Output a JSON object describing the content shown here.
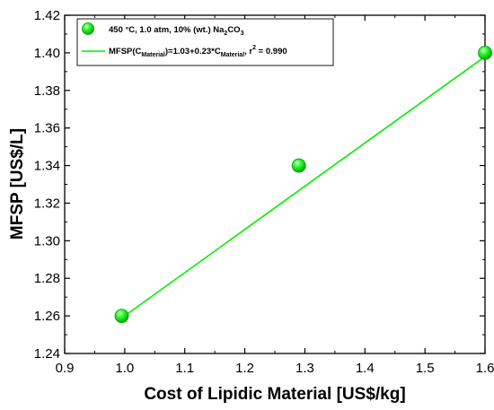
{
  "chart_data": {
    "type": "scatter",
    "xlabel": "Cost of Lipidic Material [US$/kg]",
    "ylabel": "MFSP [US$/L]",
    "xlim": [
      0.9,
      1.6
    ],
    "ylim": [
      1.24,
      1.42
    ],
    "x_ticks": [
      0.9,
      1.0,
      1.1,
      1.2,
      1.3,
      1.4,
      1.5,
      1.6
    ],
    "x_tick_labels": [
      "0.9",
      "1.0",
      "1.1",
      "1.2",
      "1.3",
      "1.4",
      "1.5",
      "1.6"
    ],
    "y_ticks": [
      1.24,
      1.26,
      1.28,
      1.3,
      1.32,
      1.34,
      1.36,
      1.38,
      1.4,
      1.42
    ],
    "y_tick_labels": [
      "1.24",
      "1.26",
      "1.28",
      "1.30",
      "1.32",
      "1.34",
      "1.36",
      "1.38",
      "1.40",
      "1.42"
    ],
    "grid": false,
    "legend_position": "top-left",
    "series": [
      {
        "name": "450 °C, 1.0 atm, 10% (wt.) Na2CO3",
        "kind": "points",
        "color": "#00e000",
        "x": [
          0.995,
          1.29,
          1.6
        ],
        "y": [
          1.26,
          1.34,
          1.4
        ]
      },
      {
        "name": "MFSP(CMaterial)=1.03+0.23*CMaterial, r2 = 0.990",
        "kind": "fit-line",
        "color": "#00ee00",
        "intercept": 1.03,
        "slope": 0.23,
        "r2": 0.99,
        "x": [
          0.995,
          1.6
        ]
      }
    ],
    "legend": {
      "entry1": {
        "prefix": "450 °C, 1.0 atm, 10% (wt.) Na",
        "sub1": "2",
        "mid": "CO",
        "sub2": "3"
      },
      "entry2": {
        "part1": "MFSP(C",
        "sub1": "Material",
        "part2": ")=1.03+0.23*C",
        "sub2": "Material",
        "part3": ", r",
        "sup": "2",
        "part4": " = 0.990"
      }
    }
  }
}
